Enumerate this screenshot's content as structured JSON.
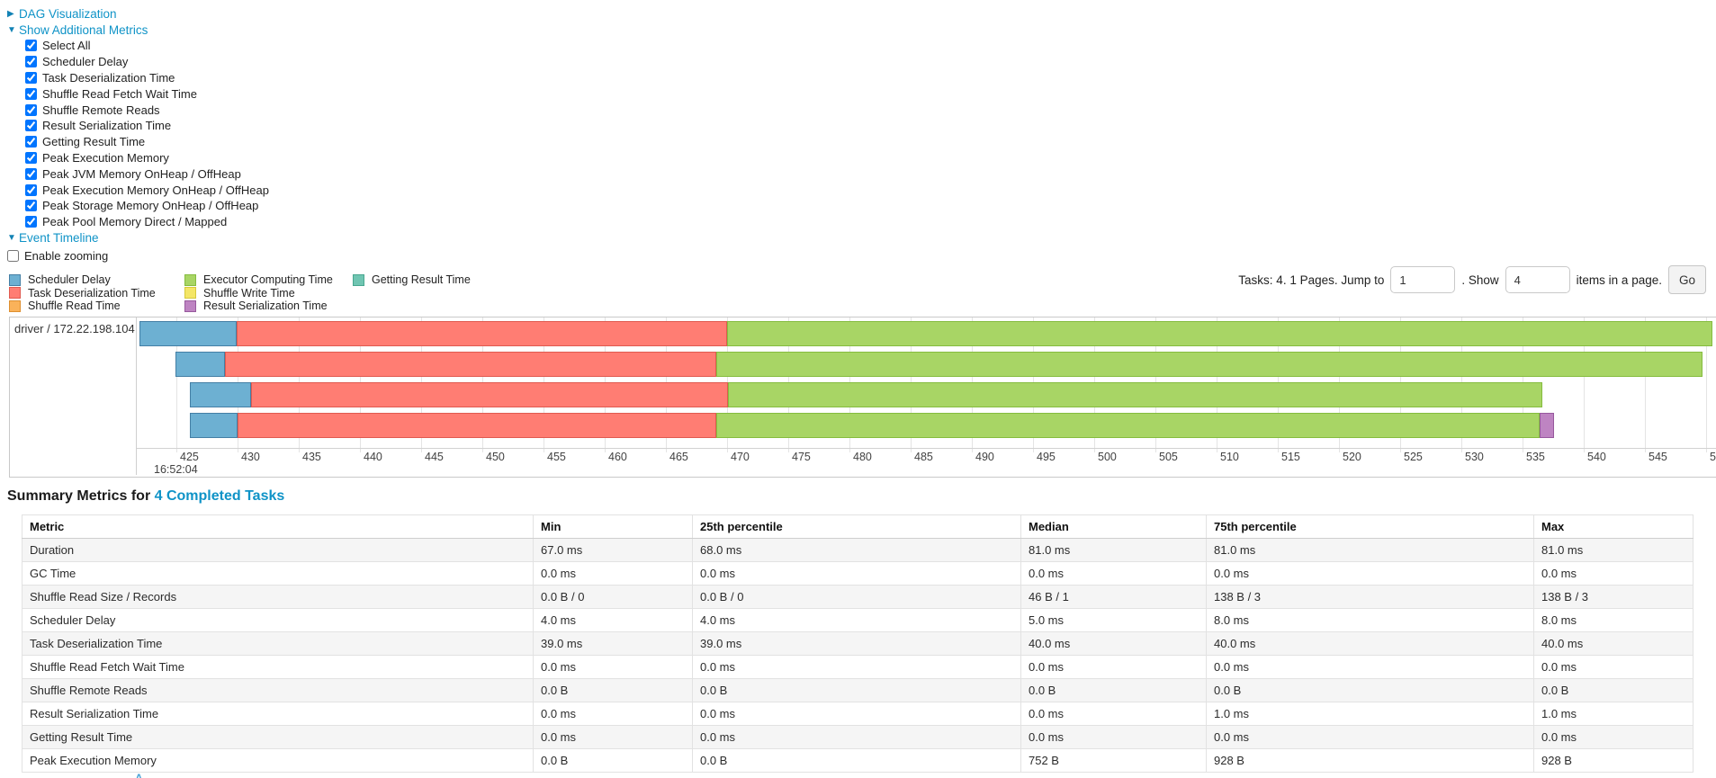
{
  "accent": {
    "link_color": "#0f93c7"
  },
  "collapsibles": {
    "dag": {
      "label": "DAG Visualization",
      "state": "collapsed",
      "arrow": "▶"
    },
    "additional_metrics": {
      "label": "Show Additional Metrics",
      "state": "expanded",
      "arrow": "▼"
    },
    "event_timeline": {
      "label": "Event Timeline",
      "state": "expanded",
      "arrow": "▼"
    }
  },
  "metrics_panel": {
    "items": [
      {
        "label": "Select All",
        "checked": true
      },
      {
        "label": "Scheduler Delay",
        "checked": true
      },
      {
        "label": "Task Deserialization Time",
        "checked": true
      },
      {
        "label": "Shuffle Read Fetch Wait Time",
        "checked": true
      },
      {
        "label": "Shuffle Remote Reads",
        "checked": true
      },
      {
        "label": "Result Serialization Time",
        "checked": true
      },
      {
        "label": "Getting Result Time",
        "checked": true
      },
      {
        "label": "Peak Execution Memory",
        "checked": true
      },
      {
        "label": "Peak JVM Memory OnHeap / OffHeap",
        "checked": true
      },
      {
        "label": "Peak Execution Memory OnHeap / OffHeap",
        "checked": true
      },
      {
        "label": "Peak Storage Memory OnHeap / OffHeap",
        "checked": true
      },
      {
        "label": "Peak Pool Memory Direct / Mapped",
        "checked": true
      }
    ]
  },
  "enable_zooming": {
    "label": "Enable zooming",
    "checked": false
  },
  "legend": {
    "columns": [
      [
        {
          "label": "Scheduler Delay",
          "color": "#6DB0D2",
          "border": "#447FA5"
        },
        {
          "label": "Task Deserialization Time",
          "color": "#FF7D73",
          "border": "#E05A50"
        },
        {
          "label": "Shuffle Read Time",
          "color": "#FAB25A",
          "border": "#DE8F30"
        }
      ],
      [
        {
          "label": "Executor Computing Time",
          "color": "#A8D565",
          "border": "#85BC3F"
        },
        {
          "label": "Shuffle Write Time",
          "color": "#F4E666",
          "border": "#D6C93C"
        },
        {
          "label": "Result Serialization Time",
          "color": "#BE84C2",
          "border": "#97599D"
        }
      ],
      [
        {
          "label": "Getting Result Time",
          "color": "#70C5B2",
          "border": "#48A78F"
        }
      ]
    ]
  },
  "pagination": {
    "tasks_text": "Tasks: 4. 1 Pages. Jump to",
    "jump_value": "1",
    "show_text": ". Show",
    "show_value": "4",
    "items_text": "items in a page.",
    "go_label": "Go"
  },
  "chart_data": {
    "type": "timeline",
    "group_label": "driver / 172.22.198.104",
    "x_axis": {
      "min": 425,
      "max": 550,
      "tick_step": 5,
      "time_label": "16:52:04",
      "units": "ms within 16:52:04"
    },
    "colors": {
      "scheduler-delay": {
        "fill": "#6DB0D2",
        "border": "#447FA5"
      },
      "task-deserialization": {
        "fill": "#FF7D73",
        "border": "#E05A50"
      },
      "executor-computing": {
        "fill": "#A8D565",
        "border": "#85BC3F"
      },
      "result-serialization": {
        "fill": "#BE84C2",
        "border": "#97599D"
      }
    },
    "tasks": [
      {
        "segments": [
          {
            "name": "scheduler-delay",
            "start": 422.0,
            "end": 429.9
          },
          {
            "name": "task-deserialization",
            "start": 429.9,
            "end": 470.0
          },
          {
            "name": "executor-computing",
            "start": 470.0,
            "end": 550.5
          }
        ]
      },
      {
        "segments": [
          {
            "name": "scheduler-delay",
            "start": 424.9,
            "end": 429.0
          },
          {
            "name": "task-deserialization",
            "start": 429.0,
            "end": 469.1
          },
          {
            "name": "executor-computing",
            "start": 469.1,
            "end": 549.7
          }
        ]
      },
      {
        "segments": [
          {
            "name": "scheduler-delay",
            "start": 426.1,
            "end": 431.1
          },
          {
            "name": "task-deserialization",
            "start": 431.1,
            "end": 470.1
          },
          {
            "name": "executor-computing",
            "start": 470.1,
            "end": 536.6
          }
        ]
      },
      {
        "segments": [
          {
            "name": "scheduler-delay",
            "start": 426.1,
            "end": 430.0
          },
          {
            "name": "task-deserialization",
            "start": 430.0,
            "end": 469.1
          },
          {
            "name": "executor-computing",
            "start": 469.1,
            "end": 536.4
          },
          {
            "name": "result-serialization",
            "start": 536.4,
            "end": 537.6
          }
        ]
      }
    ]
  },
  "summary": {
    "title_prefix": "Summary Metrics for",
    "completed_link": "4 Completed Tasks",
    "headers": [
      "Metric",
      "Min",
      "25th percentile",
      "Median",
      "75th percentile",
      "Max"
    ],
    "rows": [
      {
        "metric": "Duration",
        "values": [
          "67.0 ms",
          "68.0 ms",
          "81.0 ms",
          "81.0 ms",
          "81.0 ms"
        ]
      },
      {
        "metric": "GC Time",
        "values": [
          "0.0 ms",
          "0.0 ms",
          "0.0 ms",
          "0.0 ms",
          "0.0 ms"
        ]
      },
      {
        "metric": "Shuffle Read Size / Records",
        "values": [
          "0.0 B / 0",
          "0.0 B / 0",
          "46 B / 1",
          "138 B / 3",
          "138 B / 3"
        ]
      },
      {
        "metric": "Scheduler Delay",
        "values": [
          "4.0 ms",
          "4.0 ms",
          "5.0 ms",
          "8.0 ms",
          "8.0 ms"
        ]
      },
      {
        "metric": "Task Deserialization Time",
        "values": [
          "39.0 ms",
          "39.0 ms",
          "40.0 ms",
          "40.0 ms",
          "40.0 ms"
        ]
      },
      {
        "metric": "Shuffle Read Fetch Wait Time",
        "values": [
          "0.0 ms",
          "0.0 ms",
          "0.0 ms",
          "0.0 ms",
          "0.0 ms"
        ]
      },
      {
        "metric": "Shuffle Remote Reads",
        "values": [
          "0.0 B",
          "0.0 B",
          "0.0 B",
          "0.0 B",
          "0.0 B"
        ]
      },
      {
        "metric": "Result Serialization Time",
        "values": [
          "0.0 ms",
          "0.0 ms",
          "0.0 ms",
          "1.0 ms",
          "1.0 ms"
        ]
      },
      {
        "metric": "Getting Result Time",
        "values": [
          "0.0 ms",
          "0.0 ms",
          "0.0 ms",
          "0.0 ms",
          "0.0 ms"
        ]
      },
      {
        "metric": "Peak Execution Memory",
        "values": [
          "0.0 B",
          "0.0 B",
          "752 B",
          "928 B",
          "928 B"
        ]
      }
    ]
  }
}
